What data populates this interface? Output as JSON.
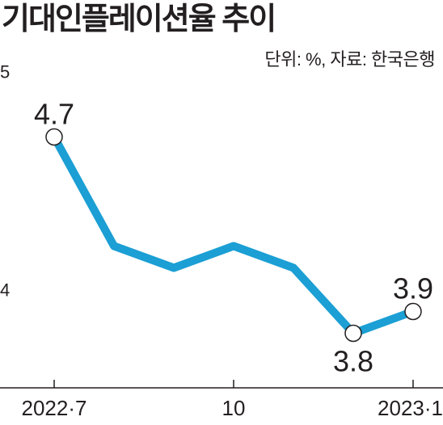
{
  "chart_data": {
    "type": "line",
    "title": "기대인플레이션율 추이",
    "unit_note": "단위: %, 자료: 한국은행",
    "x_tick_labels": [
      "2022·7",
      "10",
      "2023·1"
    ],
    "x_tick_indices": [
      0,
      3,
      6
    ],
    "y_tick_labels": [
      "5",
      "4"
    ],
    "y_tick_values": [
      5,
      4
    ],
    "ylim": [
      3.55,
      5.05
    ],
    "series": [
      {
        "values": [
          4.7,
          4.2,
          4.1,
          4.2,
          4.1,
          3.8,
          3.9
        ],
        "color": "#1b9fd4"
      }
    ],
    "data_labels": [
      {
        "index": 0,
        "text": "4.7",
        "position": "above"
      },
      {
        "index": 5,
        "text": "3.8",
        "position": "below"
      },
      {
        "index": 6,
        "text": "3.9",
        "position": "above"
      }
    ],
    "grid": false
  }
}
